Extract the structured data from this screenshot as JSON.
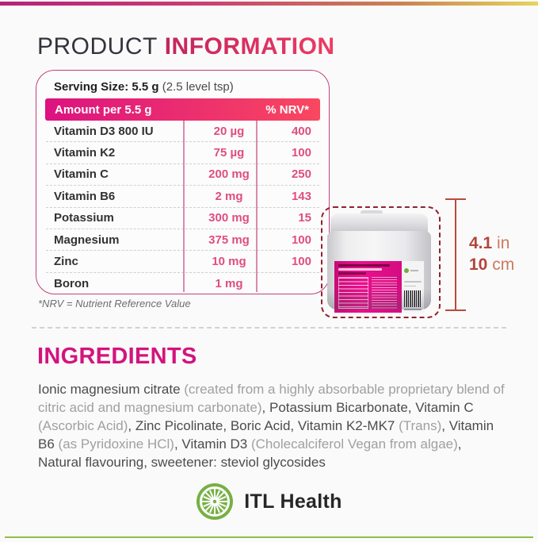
{
  "page": {
    "title_part1": "PRODUCT",
    "title_part2": "INFORMATION"
  },
  "colors": {
    "accent_pink": "#d2147e",
    "header_gradient_left": "#dc1280",
    "header_gradient_right": "#f9485f",
    "value_pink": "#df4d82",
    "measure_red": "#b84b3d",
    "brand_green": "#76b043"
  },
  "nutrition_table": {
    "serving_size": {
      "label": "Serving Size:",
      "value": "5.5 g",
      "note": "(2.5 level tsp)"
    },
    "header": {
      "amount_label": "Amount per 5.5 g",
      "nrv_label": "% NRV*"
    },
    "rows": [
      {
        "name": "Vitamin D3 800 IU",
        "amount": "20 µg",
        "nrv": "400"
      },
      {
        "name": "Vitamin K2",
        "amount": "75 µg",
        "nrv": "100"
      },
      {
        "name": "Vitamin C",
        "amount": "200 mg",
        "nrv": "250"
      },
      {
        "name": "Vitamin B6",
        "amount": "2 mg",
        "nrv": "143"
      },
      {
        "name": "Potassium",
        "amount": "300 mg",
        "nrv": "15"
      },
      {
        "name": "Magnesium",
        "amount": "375 mg",
        "nrv": "100"
      },
      {
        "name": "Zinc",
        "amount": "10 mg",
        "nrv": "100"
      },
      {
        "name": "Boron",
        "amount": "1 mg",
        "nrv": ""
      }
    ],
    "footnote": "*NRV = Nutrient Reference Value"
  },
  "measurement": {
    "in_value": "4.1",
    "in_unit": " in",
    "cm_value": "10",
    "cm_unit": " cm"
  },
  "ingredients": {
    "heading": "INGREDIENTS",
    "segments": [
      {
        "text": "Ionic magnesium citrate ",
        "muted": false
      },
      {
        "text": "(created from a highly absorbable proprietary blend of citric acid and magnesium carbonate)",
        "muted": true
      },
      {
        "text": ", Potassium Bicarbonate, Vitamin C ",
        "muted": false
      },
      {
        "text": "(Ascorbic Acid)",
        "muted": true
      },
      {
        "text": ", Zinc Picolinate, Boric Acid, Vitamin K2-MK7 ",
        "muted": false
      },
      {
        "text": "(Trans)",
        "muted": true
      },
      {
        "text": ", Vitamin B6 ",
        "muted": false
      },
      {
        "text": "(as Pyridoxine HCl)",
        "muted": true
      },
      {
        "text": ", Vitamin D3 ",
        "muted": false
      },
      {
        "text": "(Cholecalciferol Vegan from algae)",
        "muted": true
      },
      {
        "text": ", Natural flavouring, sweetener: steviol glycosides",
        "muted": false
      }
    ]
  },
  "footer": {
    "brand": "ITL Health"
  }
}
